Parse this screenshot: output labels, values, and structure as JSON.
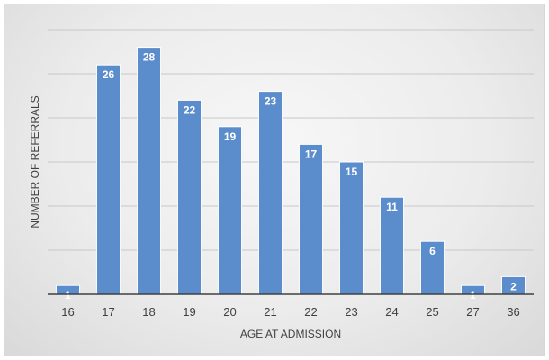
{
  "chart_data": {
    "type": "bar",
    "categories": [
      "16",
      "17",
      "18",
      "19",
      "20",
      "21",
      "22",
      "23",
      "24",
      "25",
      "27",
      "36"
    ],
    "values": [
      1,
      26,
      28,
      22,
      19,
      23,
      17,
      15,
      11,
      6,
      1,
      2
    ],
    "xlabel": "AGE AT ADMISSION",
    "ylabel": "NUMBER OF REFERRALS",
    "ylim": [
      0,
      30
    ],
    "grid": true,
    "bar_color": "#5b8ccc",
    "bar_edge_color": "#ffffff",
    "grid_color": "#c8c8c8",
    "axis_color": "#404040"
  }
}
